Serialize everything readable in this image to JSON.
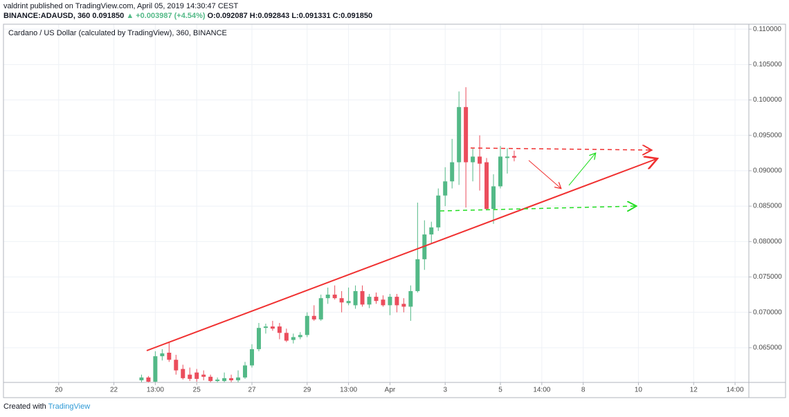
{
  "header": {
    "publisher": "valdrint published on TradingView.com, April 05, 2019 14:30:47 CEST",
    "symbol": "BINANCE:ADAUSD, 360",
    "price": "0.091850",
    "change": "▲ +0.003987 (+4.54%)",
    "ohlc": "O:0.092087 H:0.092843 L:0.091331 C:0.091850"
  },
  "footer": {
    "created": "Created with",
    "brand": "TradingView"
  },
  "chart_data": {
    "type": "candlestick",
    "title": "Cardano / US Dollar (calculated by TradingView), 360, BINANCE",
    "categories": [
      null,
      null,
      null,
      null,
      null,
      null,
      null,
      null,
      null,
      null,
      null,
      null,
      null,
      null,
      null,
      null,
      null,
      null,
      null,
      null,
      null,
      null,
      null,
      null,
      null,
      null,
      null,
      null,
      null,
      null,
      null,
      null,
      null,
      null,
      null,
      null,
      null,
      null,
      null,
      null,
      null,
      null,
      null,
      null,
      null,
      null,
      null,
      null,
      null,
      null,
      null,
      null,
      null,
      null,
      null
    ],
    "open": [
      0.0604,
      0.0608,
      0.0602,
      0.0638,
      0.0643,
      0.0633,
      0.062,
      0.0612,
      0.0615,
      0.0612,
      0.0609,
      0.0603,
      0.0603,
      0.0607,
      0.0604,
      0.0608,
      0.0625,
      0.0648,
      0.0678,
      0.068,
      0.068,
      0.0671,
      0.0661,
      0.0665,
      0.0668,
      0.0695,
      0.069,
      0.072,
      0.0725,
      0.072,
      0.0713,
      0.071,
      0.073,
      0.0711,
      0.0722,
      0.0718,
      0.071,
      0.0722,
      0.0712,
      0.0708,
      0.073,
      0.0775,
      0.081,
      0.082,
      0.0865,
      0.0885,
      0.0912,
      0.099,
      0.0912,
      0.092,
      0.0912,
      0.0846,
      0.0878,
      0.0918,
      0.092087
    ],
    "high": [
      0.0612,
      0.061,
      0.0645,
      0.0648,
      0.0658,
      0.064,
      0.0626,
      0.0622,
      0.062,
      0.0618,
      0.0612,
      0.0608,
      0.0615,
      0.0612,
      0.0618,
      0.063,
      0.0655,
      0.0685,
      0.0684,
      0.0688,
      0.0685,
      0.0677,
      0.067,
      0.0672,
      0.07,
      0.071,
      0.0725,
      0.0735,
      0.0738,
      0.073,
      0.0735,
      0.0738,
      0.0738,
      0.0726,
      0.0728,
      0.0724,
      0.0726,
      0.0726,
      0.072,
      0.0738,
      0.0855,
      0.083,
      0.0828,
      0.0875,
      0.0905,
      0.0945,
      0.1012,
      0.1018,
      0.0932,
      0.095,
      0.0918,
      0.0895,
      0.0935,
      0.0932,
      0.092843
    ],
    "low": [
      0.06,
      0.06,
      0.06,
      0.0632,
      0.063,
      0.0612,
      0.0605,
      0.0603,
      0.0602,
      0.0604,
      0.06,
      0.06,
      0.06,
      0.0601,
      0.0601,
      0.0606,
      0.0622,
      0.0645,
      0.067,
      0.0674,
      0.0662,
      0.0658,
      0.0656,
      0.0662,
      0.0665,
      0.0688,
      0.0688,
      0.0712,
      0.0718,
      0.07,
      0.071,
      0.0705,
      0.0708,
      0.0706,
      0.0712,
      0.0708,
      0.0696,
      0.07,
      0.07,
      0.0688,
      0.0728,
      0.076,
      0.0798,
      0.0815,
      0.085,
      0.0875,
      0.088,
      0.0848,
      0.0885,
      0.0872,
      0.0845,
      0.0825,
      0.0875,
      0.0896,
      0.091331
    ],
    "close": [
      0.0608,
      0.0602,
      0.0638,
      0.0642,
      0.0633,
      0.0618,
      0.0607,
      0.0606,
      0.0606,
      0.0609,
      0.0603,
      0.0605,
      0.0607,
      0.0604,
      0.0608,
      0.0625,
      0.0648,
      0.0678,
      0.068,
      0.0677,
      0.0671,
      0.066,
      0.0665,
      0.0668,
      0.0695,
      0.069,
      0.072,
      0.0725,
      0.072,
      0.0714,
      0.0716,
      0.073,
      0.0711,
      0.0722,
      0.0716,
      0.071,
      0.0722,
      0.071,
      0.0708,
      0.073,
      0.0775,
      0.081,
      0.082,
      0.0865,
      0.0885,
      0.0912,
      0.099,
      0.0912,
      0.092,
      0.091,
      0.0846,
      0.0878,
      0.092,
      0.092,
      0.09185
    ],
    "up_color": "#53b987",
    "down_color": "#eb4d5c",
    "xlim": [
      -20,
      88
    ],
    "xticks": [
      {
        "value": -12,
        "label": "20"
      },
      {
        "value": -4,
        "label": "22"
      },
      {
        "value": 2,
        "label": "13:00"
      },
      {
        "value": 8,
        "label": "25"
      },
      {
        "value": 16,
        "label": "27"
      },
      {
        "value": 24,
        "label": "29"
      },
      {
        "value": 30,
        "label": "13:00"
      },
      {
        "value": 36,
        "label": "Apr"
      },
      {
        "value": 44,
        "label": "3"
      },
      {
        "value": 52,
        "label": "5"
      },
      {
        "value": 58,
        "label": "14:00"
      },
      {
        "value": 64,
        "label": "8"
      },
      {
        "value": 72,
        "label": "10"
      },
      {
        "value": 80,
        "label": "12"
      },
      {
        "value": 86,
        "label": "14:00"
      }
    ],
    "ylim": [
      0.0601,
      0.1107
    ],
    "yticks": [
      {
        "value": 0.065,
        "label": "0.065000"
      },
      {
        "value": 0.07,
        "label": "0.070000"
      },
      {
        "value": 0.075,
        "label": "0.075000"
      },
      {
        "value": 0.08,
        "label": "0.080000"
      },
      {
        "value": 0.085,
        "label": "0.085000"
      },
      {
        "value": 0.09,
        "label": "0.090000"
      },
      {
        "value": 0.095,
        "label": "0.095000"
      },
      {
        "value": 0.1,
        "label": "0.100000"
      },
      {
        "value": 0.105,
        "label": "0.105000"
      },
      {
        "value": 0.11,
        "label": "0.110000"
      }
    ],
    "grid": true
  }
}
